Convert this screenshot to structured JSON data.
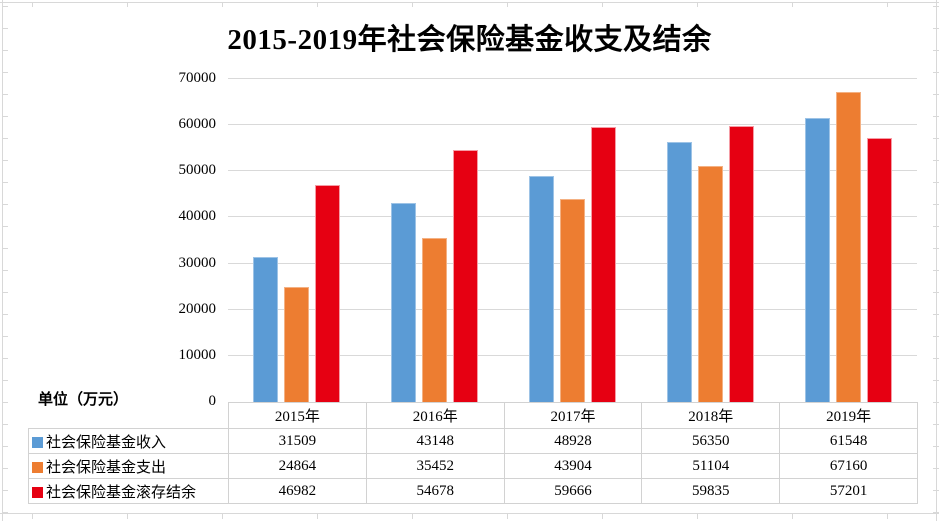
{
  "chart_data": {
    "type": "bar",
    "title": "2015-2019年社会保险基金收支及结余",
    "unit_label": "单位（万元）",
    "categories": [
      "2015年",
      "2016年",
      "2017年",
      "2018年",
      "2019年"
    ],
    "series": [
      {
        "name": "社会保险基金收入",
        "color": "#5B9BD5",
        "edge": "#9DC3E6",
        "values": [
          31509,
          43148,
          48928,
          56350,
          61548
        ]
      },
      {
        "name": "社会保险基金支出",
        "color": "#ED7D31",
        "edge": "#F4B183",
        "values": [
          24864,
          35452,
          43904,
          51104,
          67160
        ]
      },
      {
        "name": "社会保险基金滚存结余",
        "color": "#E60012",
        "edge": "#F59CA5",
        "values": [
          46982,
          54678,
          59666,
          59835,
          57201
        ]
      }
    ],
    "ylim": [
      0,
      70000
    ],
    "ytick_step": 10000,
    "yticks": [
      "0",
      "10000",
      "20000",
      "30000",
      "40000",
      "50000",
      "60000",
      "70000"
    ],
    "grid": true,
    "legend_position": "data-table-left",
    "colors": {
      "gridline": "#d9d9d9",
      "table_border": "#d2d2d2",
      "sheet_gridline": "#d8d8d8",
      "text": "#000000"
    }
  }
}
